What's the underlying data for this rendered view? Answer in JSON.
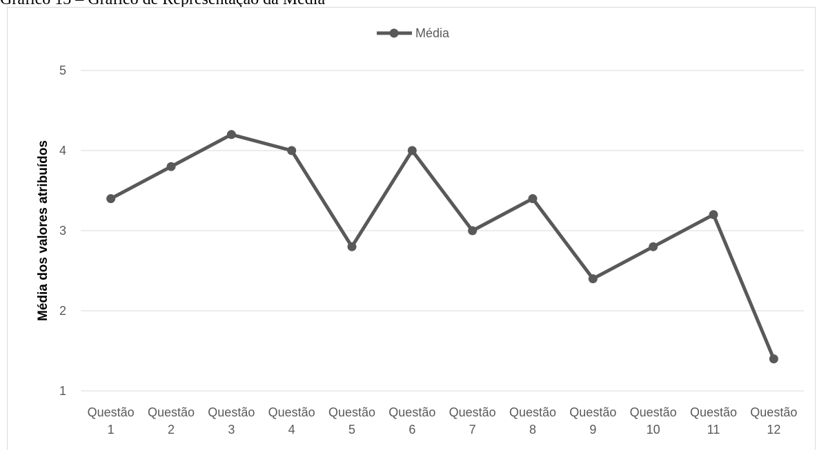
{
  "caption": "Gráfico 13 – Gráfico de Representação da Média",
  "chart_data": {
    "type": "line",
    "categories": [
      [
        "Questão",
        "1"
      ],
      [
        "Questão",
        "2"
      ],
      [
        "Questão",
        "3"
      ],
      [
        "Questão",
        "4"
      ],
      [
        "Questão",
        "5"
      ],
      [
        "Questão",
        "6"
      ],
      [
        "Questão",
        "7"
      ],
      [
        "Questão",
        "8"
      ],
      [
        "Questão",
        "9"
      ],
      [
        "Questão",
        "10"
      ],
      [
        "Questão",
        "11"
      ],
      [
        "Questão",
        "12"
      ]
    ],
    "series": [
      {
        "name": "Média",
        "values": [
          3.4,
          3.8,
          4.2,
          4.0,
          2.8,
          4.0,
          3.0,
          3.4,
          2.4,
          2.8,
          3.2,
          1.4
        ],
        "color": "#595959"
      }
    ],
    "title": "",
    "xlabel": "",
    "ylabel": "Média dos valores atribuídos",
    "ylim": [
      1,
      5
    ],
    "yticks": [
      "1",
      "2",
      "3",
      "4",
      "5"
    ],
    "grid": true,
    "legend_position": "top-center",
    "gridline_color": "#d9d9d9"
  }
}
